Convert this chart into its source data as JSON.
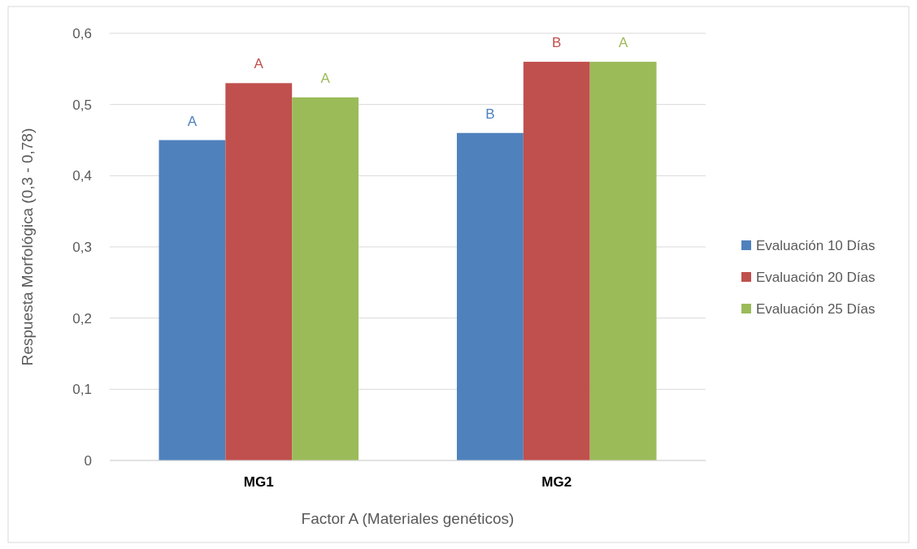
{
  "chart_data": {
    "type": "bar",
    "xlabel": "Factor A (Materiales genéticos)",
    "ylabel": "Respuesta Morfológica (0,3 - 0,78)",
    "categories": [
      "MG1",
      "MG2"
    ],
    "series": [
      {
        "name": "Evaluación 10 Días",
        "color": "#4f81bd",
        "values": [
          0.45,
          0.46
        ],
        "value_labels": [
          "A",
          "B"
        ]
      },
      {
        "name": "Evaluación 20 Días",
        "color": "#c0504d",
        "values": [
          0.53,
          0.56
        ],
        "value_labels": [
          "A",
          "B"
        ]
      },
      {
        "name": "Evaluación 25 Días",
        "color": "#9bbb59",
        "values": [
          0.51,
          0.56
        ],
        "value_labels": [
          "A",
          "A"
        ]
      }
    ],
    "ylim": [
      0,
      0.6
    ],
    "yticks": [
      {
        "value": 0,
        "label": "0"
      },
      {
        "value": 0.1,
        "label": "0,1"
      },
      {
        "value": 0.2,
        "label": "0,2"
      },
      {
        "value": 0.3,
        "label": "0,3"
      },
      {
        "value": 0.4,
        "label": "0,4"
      },
      {
        "value": 0.5,
        "label": "0,5"
      },
      {
        "value": 0.6,
        "label": "0,6"
      }
    ],
    "grid": "y",
    "legend": "right"
  }
}
